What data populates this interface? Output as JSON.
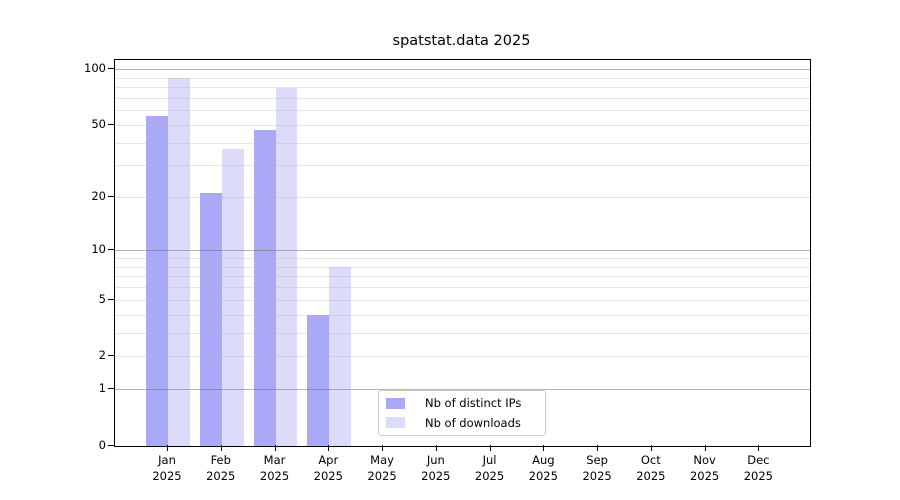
{
  "chart_data": {
    "type": "bar",
    "title": "spatstat.data 2025",
    "categories": [
      "Jan",
      "Feb",
      "Mar",
      "Apr",
      "May",
      "Jun",
      "Jul",
      "Aug",
      "Sep",
      "Oct",
      "Nov",
      "Dec"
    ],
    "x_year_label": "2025",
    "series": [
      {
        "name": "Nb of distinct IPs",
        "color": "#a9a9f7",
        "values": [
          56,
          21,
          47,
          4,
          null,
          null,
          null,
          null,
          null,
          null,
          null,
          null
        ]
      },
      {
        "name": "Nb of downloads",
        "color": "#dcdcfa",
        "values": [
          90,
          37,
          79,
          8,
          null,
          null,
          null,
          null,
          null,
          null,
          null,
          null
        ]
      }
    ],
    "yscale": "log(value+1)",
    "ylim": [
      0,
      112
    ],
    "yticks": [
      0,
      1,
      2,
      5,
      10,
      20,
      50,
      100
    ],
    "ytick_labels": [
      "0",
      "1",
      "2",
      "5",
      "10",
      "20",
      "50",
      "100"
    ],
    "minor_gridlines": [
      2,
      3,
      4,
      5,
      6,
      7,
      8,
      9,
      20,
      30,
      40,
      50,
      60,
      70,
      80,
      90
    ],
    "major_gridlines": [
      1,
      10,
      100
    ],
    "grid": true,
    "legend_position": "lower center, inside plot"
  },
  "colors": {
    "distinct_ips_bar": "#a9a9f7",
    "downloads_bar": "#dcdcfa",
    "minor_gridline": "#e6e6e6",
    "major_gridline": "#b0b0b0",
    "axis_spine": "#000000",
    "background": "#ffffff"
  }
}
